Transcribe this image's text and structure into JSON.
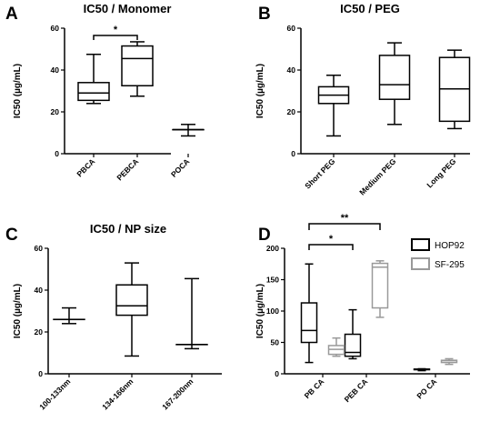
{
  "chart_data": [
    {
      "type": "box",
      "letter": "A",
      "title": "IC50 / Monomer",
      "ylabel": "IC50  (µg/mL)",
      "ylim": [
        0,
        60
      ],
      "yticks": [
        0,
        20,
        40,
        60
      ],
      "categories": [
        "PBCA",
        "PEBCA",
        "POCA"
      ],
      "series": [
        {
          "color": "#000000",
          "boxes": [
            {
              "min": 24,
              "q1": 25.5,
              "median": 29,
              "q3": 34,
              "max": 47.5
            },
            {
              "min": 27.5,
              "q1": 32.5,
              "median": 45.5,
              "q3": 51.5,
              "max": 53.5
            },
            {
              "min": 8.5,
              "q1": 11.5,
              "median": 11.5,
              "q3": 11.5,
              "max": 14
            }
          ]
        }
      ],
      "significance": [
        {
          "from": 0,
          "to": 1,
          "label": "*"
        }
      ]
    },
    {
      "type": "box",
      "letter": "B",
      "title": "IC50 / PEG",
      "ylabel": "IC50  (µg/mL)",
      "ylim": [
        0,
        60
      ],
      "yticks": [
        0,
        20,
        40,
        60
      ],
      "categories": [
        "Short PEG",
        "Medium PEG",
        "Long PEG"
      ],
      "series": [
        {
          "color": "#000000",
          "boxes": [
            {
              "min": 8.5,
              "q1": 24,
              "median": 28,
              "q3": 32,
              "max": 37.5
            },
            {
              "min": 14,
              "q1": 26,
              "median": 33,
              "q3": 47,
              "max": 53
            },
            {
              "min": 12,
              "q1": 15.5,
              "median": 31,
              "q3": 46,
              "max": 49.5
            }
          ]
        }
      ],
      "significance": []
    },
    {
      "type": "box",
      "letter": "C",
      "title": "IC50 / NP size",
      "ylabel": "IC50  (µg/mL)",
      "ylim": [
        0,
        60
      ],
      "yticks": [
        0,
        20,
        40,
        60
      ],
      "categories": [
        "100-133nm",
        "134-166nm",
        "167-200nm"
      ],
      "series": [
        {
          "color": "#000000",
          "boxes": [
            {
              "min": 24,
              "q1": 26,
              "median": 26,
              "q3": 26,
              "max": 31.5
            },
            {
              "min": 8.5,
              "q1": 28,
              "median": 32.5,
              "q3": 42.5,
              "max": 53
            },
            {
              "min": 12,
              "q1": 14,
              "median": 14,
              "q3": 14,
              "max": 45.5
            }
          ]
        }
      ],
      "significance": []
    },
    {
      "type": "box",
      "letter": "D",
      "title": "",
      "ylabel": "IC50  (µg/mL)",
      "ylim": [
        0,
        200
      ],
      "yticks": [
        0,
        50,
        100,
        150,
        200
      ],
      "categories": [
        "PB CA",
        "PEB CA",
        "PO CA"
      ],
      "legend_position": "top-right",
      "series": [
        {
          "name": "HOP92",
          "color": "#000000",
          "boxes": [
            {
              "min": 18,
              "q1": 50,
              "median": 69,
              "q3": 113,
              "max": 175
            },
            {
              "min": 24,
              "q1": 28,
              "median": 34,
              "q3": 63,
              "max": 102
            },
            {
              "min": 5,
              "q1": 6.5,
              "median": 7,
              "q3": 7.5,
              "max": 8
            }
          ]
        },
        {
          "name": "SF-295",
          "color": "#999999",
          "boxes": [
            {
              "min": 28,
              "q1": 31,
              "median": 39,
              "q3": 45,
              "max": 57
            },
            {
              "min": 90,
              "q1": 105,
              "median": 170,
              "q3": 176,
              "max": 180
            },
            {
              "min": 15,
              "q1": 18,
              "median": 21,
              "q3": 21.5,
              "max": 24
            }
          ]
        }
      ],
      "significance": [
        {
          "from_series": 0,
          "from": 0,
          "to_series": 0,
          "to": 1,
          "label": "*"
        },
        {
          "from_series": 0,
          "from": 0,
          "to_series": 1,
          "to": 1,
          "label": "**"
        }
      ]
    }
  ]
}
